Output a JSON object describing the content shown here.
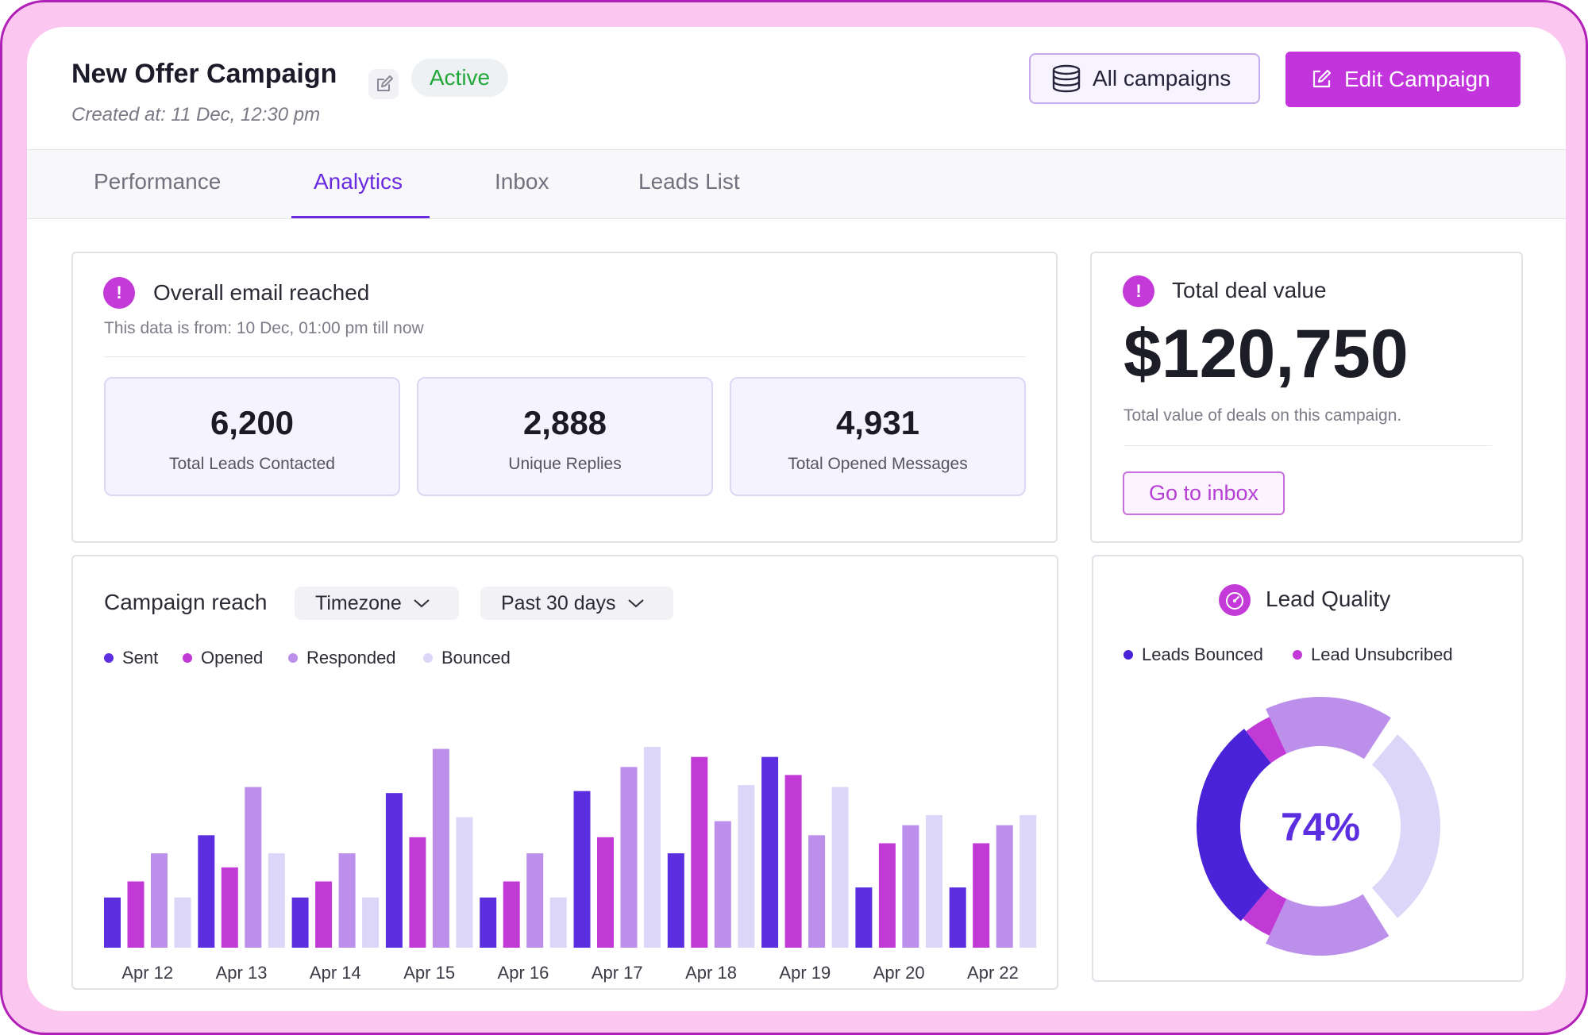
{
  "header": {
    "title": "New Offer Campaign",
    "status": "Active",
    "created": "Created at: 11 Dec, 12:30 pm",
    "all_campaigns_label": "All campaigns",
    "edit_label": "Edit Campaign"
  },
  "tabs": [
    {
      "label": "Performance"
    },
    {
      "label": "Analytics",
      "active": true
    },
    {
      "label": "Inbox"
    },
    {
      "label": "Leads List"
    }
  ],
  "email_reached": {
    "title": "Overall email reached",
    "subtitle": "This data is from: 10 Dec, 01:00 pm till now",
    "stats": [
      {
        "value": "6,200",
        "label": "Total Leads Contacted"
      },
      {
        "value": "2,888",
        "label": "Unique Replies"
      },
      {
        "value": "4,931",
        "label": "Total Opened Messages"
      }
    ]
  },
  "deal": {
    "title": "Total deal value",
    "value": "$120,750",
    "subtitle": "Total value of deals on this campaign.",
    "inbox_label": "Go to inbox"
  },
  "reach": {
    "title": "Campaign reach",
    "timezone_label": "Timezone",
    "range_label": "Past 30 days"
  },
  "lead_quality": {
    "title": "Lead Quality",
    "legend": [
      "Leads Bounced",
      "Lead Unsubcribed"
    ],
    "percent": "74%"
  },
  "colors": {
    "sent": "#5b2fe0",
    "opened": "#c23ad6",
    "responded": "#bb8fea",
    "bounced": "#dcd6f9",
    "accent": "#c234dc",
    "active_tab": "#6a2be0",
    "status_green": "#22a83a"
  },
  "chart_data": [
    {
      "type": "bar",
      "categories": [
        "Apr 12",
        "Apr 13",
        "Apr 14",
        "Apr 15",
        "Apr 16",
        "Apr 17",
        "Apr 18",
        "Apr 19",
        "Apr 20",
        "Apr 22"
      ],
      "series": [
        {
          "name": "Sent",
          "values": [
            25,
            56,
            25,
            77,
            25,
            78,
            47,
            95,
            30,
            30
          ]
        },
        {
          "name": "Opened",
          "values": [
            33,
            40,
            33,
            55,
            33,
            55,
            95,
            86,
            52,
            52
          ]
        },
        {
          "name": "Responded",
          "values": [
            47,
            80,
            47,
            99,
            47,
            90,
            63,
            56,
            61,
            61
          ]
        },
        {
          "name": "Bounced",
          "values": [
            25,
            47,
            25,
            65,
            25,
            100,
            81,
            80,
            66,
            66
          ]
        }
      ],
      "ylim": [
        0,
        100
      ],
      "grid": false,
      "legend_position": "top-left"
    },
    {
      "type": "pie",
      "donut": true,
      "labels": [
        "Leads Bounced",
        "Lead Unsubcribed"
      ],
      "center_label": "74%"
    }
  ]
}
